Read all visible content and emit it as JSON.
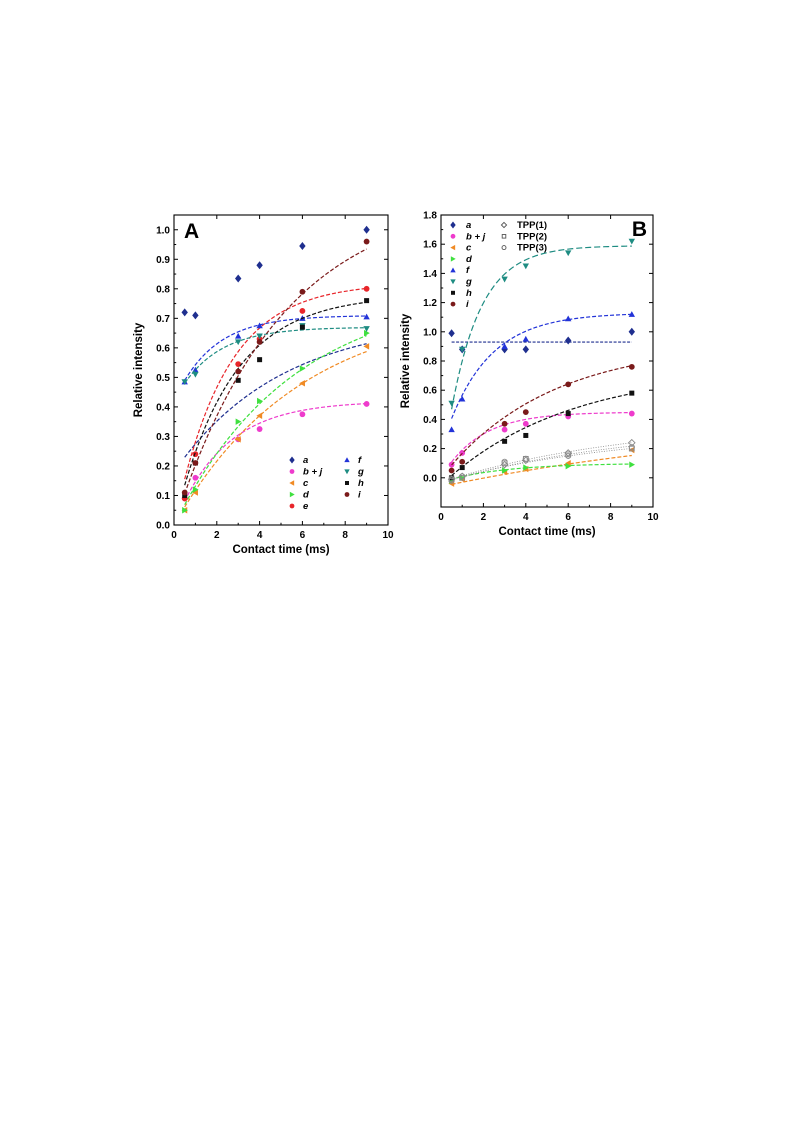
{
  "chart_data": [
    {
      "type": "scatter",
      "panel_label": "A",
      "xlabel": "Contact time (ms)",
      "ylabel": "Relative intensity",
      "xlim": [
        0,
        10
      ],
      "ylim": [
        0.0,
        1.05
      ],
      "xticks": [
        "0",
        "2",
        "4",
        "6",
        "8",
        "10"
      ],
      "yticks": [
        "0.0",
        "0.1",
        "0.2",
        "0.3",
        "0.4",
        "0.5",
        "0.6",
        "0.7",
        "0.8",
        "0.9",
        "1.0"
      ],
      "legend_position": "bottom-right",
      "x": [
        0.5,
        1,
        3,
        4,
        6,
        9
      ],
      "series": [
        {
          "name": "a",
          "marker": "diamond",
          "color": "#1f2f8f",
          "values": [
            0.72,
            0.71,
            0.835,
            0.88,
            0.945,
            1.0
          ],
          "fit": [
            0.7,
            0.2,
            0.18
          ]
        },
        {
          "name": "b + j",
          "marker": "circle",
          "color": "#ee3bcc",
          "values": [
            0.09,
            0.16,
            0.29,
            0.325,
            0.375,
            0.41
          ],
          "fit": [
            0.42,
            0.43,
            0.0
          ]
        },
        {
          "name": "c",
          "marker": "triangle-left",
          "color": "#f08a24",
          "values": [
            0.05,
            0.11,
            0.29,
            0.37,
            0.48,
            0.605
          ],
          "fit": [
            0.75,
            0.17,
            0.0
          ]
        },
        {
          "name": "d",
          "marker": "triangle-right",
          "color": "#3fe03f",
          "values": [
            0.05,
            0.12,
            0.35,
            0.42,
            0.53,
            0.65
          ],
          "fit": [
            0.8,
            0.18,
            0.0
          ]
        },
        {
          "name": "e",
          "marker": "circle",
          "color": "#e8252a",
          "values": [
            0.09,
            0.24,
            0.545,
            0.63,
            0.725,
            0.8
          ],
          "fit": [
            0.82,
            0.42,
            0.0
          ]
        },
        {
          "name": "f",
          "marker": "triangle-up",
          "color": "#2233d8",
          "values": [
            0.485,
            0.525,
            0.64,
            0.675,
            0.7,
            0.705
          ],
          "fit": [
            0.71,
            0.55,
            0.42
          ]
        },
        {
          "name": "g",
          "marker": "triangle-down",
          "color": "#1e8c82",
          "values": [
            0.485,
            0.51,
            0.62,
            0.64,
            0.675,
            0.665
          ],
          "fit": [
            0.67,
            0.55,
            0.42
          ]
        },
        {
          "name": "h",
          "marker": "square",
          "color": "#111111",
          "values": [
            0.1,
            0.21,
            0.49,
            0.56,
            0.67,
            0.76
          ],
          "fit": [
            0.78,
            0.38,
            0.0
          ]
        },
        {
          "name": "i",
          "marker": "circle",
          "color": "#7a1a1a",
          "values": [
            0.11,
            0.21,
            0.52,
            0.62,
            0.79,
            0.96
          ],
          "fit": [
            1.12,
            0.2,
            0.0
          ]
        }
      ]
    },
    {
      "type": "scatter",
      "panel_label": "B",
      "xlabel": "Contact time (ms)",
      "ylabel": "Relative intensity",
      "xlim": [
        0,
        10
      ],
      "ylim": [
        -0.2,
        1.8
      ],
      "xticks": [
        "0",
        "2",
        "4",
        "6",
        "8",
        "10"
      ],
      "yticks": [
        "0.0",
        "0.2",
        "0.4",
        "0.6",
        "0.8",
        "1.0",
        "1.2",
        "1.4",
        "1.6",
        "1.8"
      ],
      "legend_position": "top-left",
      "x": [
        0.5,
        1,
        3,
        4,
        6,
        9
      ],
      "series": [
        {
          "name": "a",
          "marker": "diamond",
          "color": "#1f2f8f",
          "values": [
            0.99,
            0.88,
            0.88,
            0.88,
            0.94,
            1.0
          ],
          "fit": [
            0.93,
            0.5,
            0.93
          ]
        },
        {
          "name": "b + j",
          "marker": "circle",
          "color": "#ee3bcc",
          "values": [
            0.09,
            0.17,
            0.33,
            0.37,
            0.42,
            0.44
          ],
          "fit": [
            0.45,
            0.55,
            0.0
          ]
        },
        {
          "name": "c",
          "marker": "triangle-left",
          "color": "#f08a24",
          "values": [
            -0.04,
            -0.01,
            0.04,
            0.06,
            0.1,
            0.19
          ],
          "fit": [
            0.45,
            0.06,
            -0.06
          ]
        },
        {
          "name": "d",
          "marker": "triangle-right",
          "color": "#3fe03f",
          "values": [
            -0.02,
            0.0,
            0.05,
            0.07,
            0.08,
            0.09
          ],
          "fit": [
            0.1,
            0.35,
            -0.03
          ]
        },
        {
          "name": "f",
          "marker": "triangle-up",
          "color": "#2233d8",
          "values": [
            0.33,
            0.54,
            0.9,
            0.95,
            1.09,
            1.12
          ],
          "fit": [
            1.13,
            0.5,
            0.2
          ]
        },
        {
          "name": "g",
          "marker": "triangle-down",
          "color": "#1e8c82",
          "values": [
            0.51,
            0.88,
            1.36,
            1.45,
            1.54,
            1.62
          ],
          "fit": [
            1.59,
            0.7,
            0.0
          ]
        },
        {
          "name": "h",
          "marker": "square",
          "color": "#111111",
          "values": [
            0.0,
            0.07,
            0.25,
            0.29,
            0.44,
            0.58
          ],
          "fit": [
            0.75,
            0.17,
            -0.05
          ]
        },
        {
          "name": "i",
          "marker": "circle",
          "color": "#7a1a1a",
          "values": [
            0.05,
            0.11,
            0.37,
            0.45,
            0.64,
            0.76
          ],
          "fit": [
            0.92,
            0.2,
            0.0
          ]
        },
        {
          "name": "TPP(1)",
          "marker": "open-diamond",
          "color": "#888888",
          "values": [
            -0.01,
            0.01,
            0.09,
            0.12,
            0.17,
            0.24
          ],
          "fit": [
            0.4,
            0.11,
            -0.03
          ]
        },
        {
          "name": "TPP(2)",
          "marker": "open-square",
          "color": "#888888",
          "values": [
            -0.01,
            0.0,
            0.1,
            0.13,
            0.16,
            0.2
          ],
          "fit": [
            0.32,
            0.12,
            -0.03
          ]
        },
        {
          "name": "TPP(3)",
          "marker": "open-circle",
          "color": "#888888",
          "values": [
            -0.02,
            0.01,
            0.11,
            0.13,
            0.15,
            0.21
          ],
          "fit": [
            0.35,
            0.12,
            -0.04
          ]
        }
      ]
    }
  ]
}
